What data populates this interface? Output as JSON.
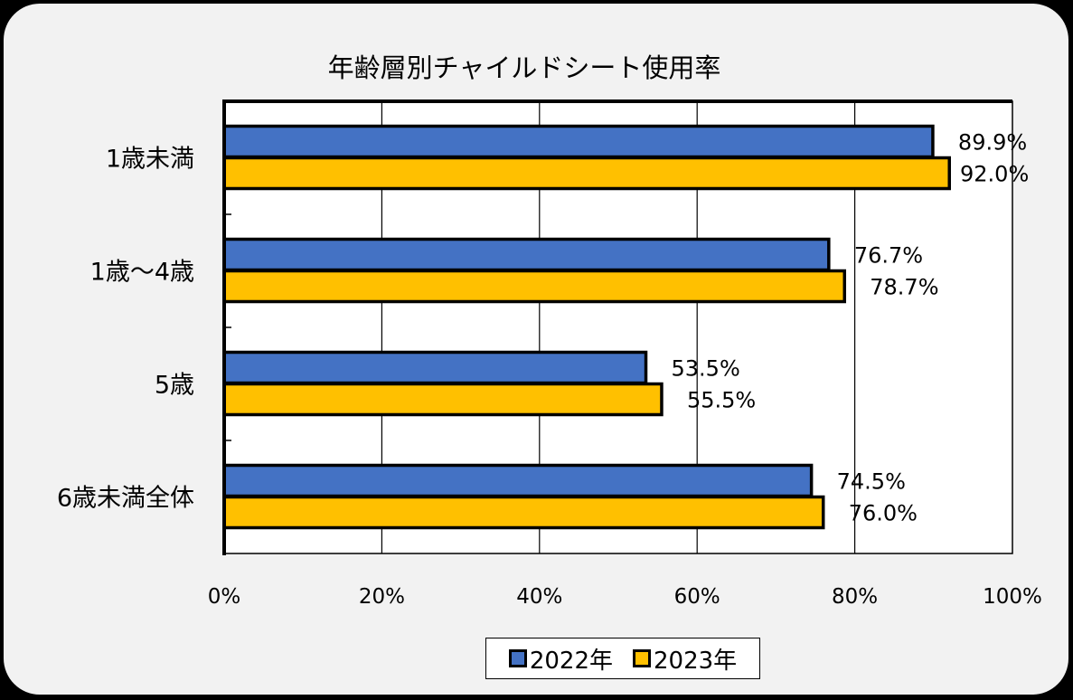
{
  "chart_data": {
    "type": "bar",
    "orientation": "horizontal",
    "title": "年齢層別チャイルドシート使用率",
    "categories": [
      "1歳未満",
      "1歳～4歳",
      "5歳",
      "6歳未満全体"
    ],
    "series": [
      {
        "name": "2022年",
        "color": "#4472c4",
        "values": [
          89.9,
          76.7,
          53.5,
          74.5
        ],
        "labels": [
          "89.9%",
          "76.7%",
          "53.5%",
          "74.5%"
        ]
      },
      {
        "name": "2023年",
        "color": "#ffc000",
        "values": [
          92.0,
          78.7,
          55.5,
          76.0
        ],
        "labels": [
          "92.0%",
          "78.7%",
          "55.5%",
          "76.0%"
        ]
      }
    ],
    "xlim": [
      0,
      100
    ],
    "xticks": [
      "0%",
      "20%",
      "40%",
      "60%",
      "80%",
      "100%"
    ],
    "grid": true,
    "legend": "bottom"
  }
}
